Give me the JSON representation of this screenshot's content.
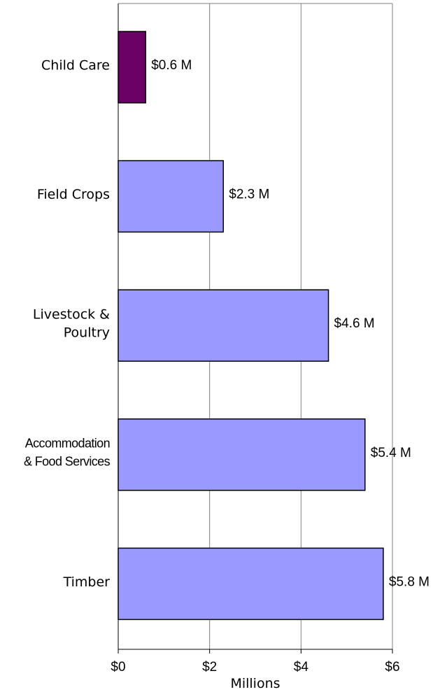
{
  "chart_data": {
    "type": "bar",
    "orientation": "horizontal",
    "categories": [
      [
        "Child Care"
      ],
      [
        "Field Crops"
      ],
      [
        "Livestock &",
        "Poultry"
      ],
      [
        "Accommodation",
        "& Food Services"
      ],
      [
        "Timber"
      ]
    ],
    "values": [
      0.6,
      2.3,
      4.6,
      5.4,
      5.8
    ],
    "data_labels": [
      "$0.6 M",
      "$2.3 M",
      "$4.6 M",
      "$5.4 M",
      "$5.8 M"
    ],
    "bar_colors": [
      "#6b0066",
      "#9999ff",
      "#9999ff",
      "#9999ff",
      "#9999ff"
    ],
    "xlabel": "Millions",
    "xlim": [
      0,
      6
    ],
    "x_ticks": [
      0,
      2,
      4,
      6
    ],
    "x_tick_labels": [
      "$0",
      "$2",
      "$4",
      "$6"
    ],
    "grid": "vertical",
    "gridline_color": "#808080"
  }
}
